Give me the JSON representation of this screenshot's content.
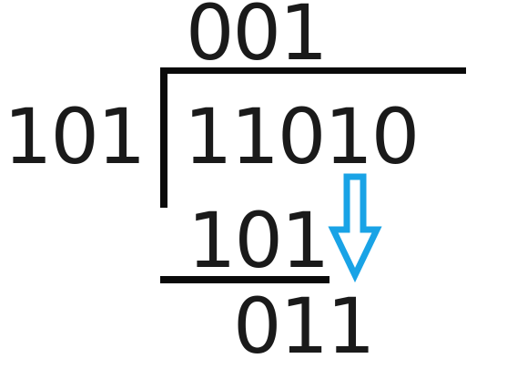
{
  "division": {
    "quotient": "001",
    "divisor": "101",
    "dividend": "11010",
    "subtrahend": "101",
    "remainder": "011"
  },
  "colors": {
    "text": "#1a1a1a",
    "lines": "#0a0a0a",
    "arrow": "#19a3e6"
  },
  "icons": {
    "arrow": "arrow-down-outline-icon"
  }
}
